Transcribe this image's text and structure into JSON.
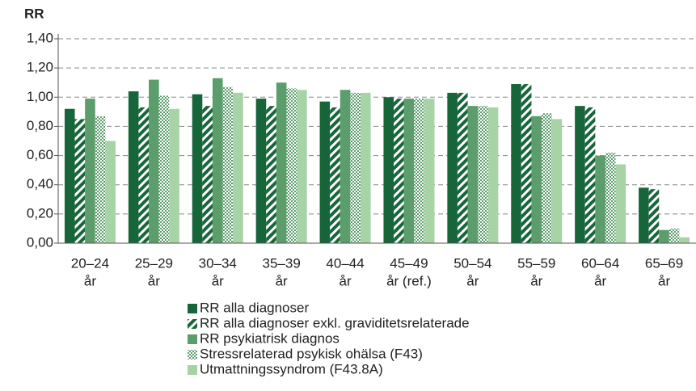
{
  "chart_data": {
    "type": "bar",
    "y_label": "RR",
    "categories": [
      [
        "20–24",
        "år"
      ],
      [
        "25–29",
        "år"
      ],
      [
        "30–34",
        "år"
      ],
      [
        "35–39",
        "år"
      ],
      [
        "40–44",
        "år"
      ],
      [
        "45–49",
        "år (ref.)"
      ],
      [
        "50–54",
        "år"
      ],
      [
        "55–59",
        "år"
      ],
      [
        "60–64",
        "år"
      ],
      [
        "65–69",
        "år"
      ]
    ],
    "series": [
      {
        "name": "RR alla diagnoser",
        "color": "#17663a",
        "pattern": "solid",
        "values": [
          0.92,
          1.04,
          1.02,
          0.99,
          0.97,
          1.0,
          1.03,
          1.09,
          0.94,
          0.38
        ]
      },
      {
        "name": "RR alla diagnoser exkl. graviditetsrelaterade",
        "color": "#17663a",
        "pattern": "diagonal",
        "values": [
          0.85,
          0.93,
          0.94,
          0.94,
          0.93,
          0.99,
          1.03,
          1.09,
          0.93,
          0.37
        ]
      },
      {
        "name": "RR psykiatrisk diagnos",
        "color": "#5c9d6c",
        "pattern": "solid",
        "values": [
          0.99,
          1.12,
          1.13,
          1.1,
          1.05,
          0.99,
          0.94,
          0.87,
          0.6,
          0.09
        ]
      },
      {
        "name": "Stressrelaterad psykisk ohälsa (F43)",
        "color": "#5c9d6c",
        "pattern": "checker",
        "values": [
          0.87,
          1.01,
          1.07,
          1.06,
          1.03,
          0.99,
          0.94,
          0.89,
          0.62,
          0.1
        ]
      },
      {
        "name": "Utmattningssyndrom (F43.8A)",
        "color": "#a7d3a6",
        "pattern": "solid",
        "values": [
          0.7,
          0.92,
          1.03,
          1.05,
          1.03,
          0.99,
          0.93,
          0.85,
          0.54,
          0.04
        ]
      }
    ],
    "ylim": [
      0,
      1.4
    ],
    "yticks": [
      {
        "value": 0,
        "label": "0,00"
      },
      {
        "value": 0.2,
        "label": "0,20"
      },
      {
        "value": 0.4,
        "label": "0,40"
      },
      {
        "value": 0.6,
        "label": "0,60"
      },
      {
        "value": 0.8,
        "label": "0,80"
      },
      {
        "value": 1,
        "label": "1,00"
      },
      {
        "value": 1.2,
        "label": "1,20"
      },
      {
        "value": 1.4,
        "label": "1,40"
      }
    ],
    "grid": true,
    "legend": "bottom"
  }
}
